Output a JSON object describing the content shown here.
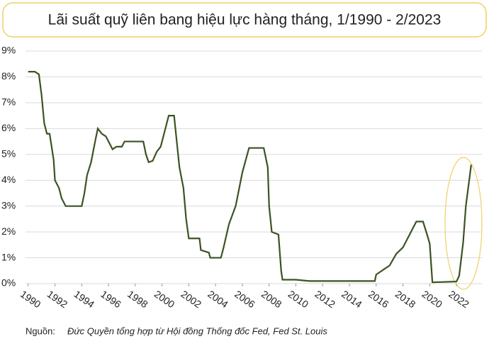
{
  "chart_data": {
    "type": "line",
    "title": "Lãi suất quỹ liên bang hiệu lực hàng tháng, 1/1990 - 2/2023",
    "source_label": "Nguồn:",
    "source_text": "Đức Quyền tổng hợp từ Hội đồng Thống đốc Fed, Fed St. Louis",
    "x": [
      1990.0,
      1990.5,
      1990.8,
      1991.0,
      1991.2,
      1991.4,
      1991.6,
      1991.9,
      1992.0,
      1992.3,
      1992.5,
      1992.8,
      1993.0,
      1993.5,
      1994.0,
      1994.2,
      1994.4,
      1994.7,
      1995.0,
      1995.2,
      1995.5,
      1995.8,
      1996.0,
      1996.3,
      1996.6,
      1997.0,
      1997.2,
      1997.5,
      1998.0,
      1998.6,
      1998.8,
      1999.0,
      1999.3,
      1999.6,
      1999.9,
      2000.2,
      2000.5,
      2000.9,
      2001.0,
      2001.3,
      2001.6,
      2001.8,
      2002.0,
      2002.8,
      2002.9,
      2003.5,
      2003.6,
      2004.4,
      2004.6,
      2005.0,
      2005.5,
      2006.0,
      2006.5,
      2007.6,
      2007.9,
      2008.0,
      2008.2,
      2008.7,
      2008.9,
      2009.0,
      2010.0,
      2011.0,
      2012.0,
      2013.0,
      2015.9,
      2016.0,
      2017.0,
      2017.5,
      2018.0,
      2018.5,
      2019.0,
      2019.5,
      2019.8,
      2020.0,
      2020.2,
      2022.0,
      2022.2,
      2022.5,
      2022.7,
      2022.9,
      2023.1
    ],
    "series": [
      {
        "name": "Lãi suất quỹ liên bang",
        "color": "#3b5323",
        "values": [
          8.2,
          8.2,
          8.1,
          7.3,
          6.2,
          5.8,
          5.8,
          4.8,
          4.0,
          3.7,
          3.3,
          3.0,
          3.0,
          3.0,
          3.0,
          3.5,
          4.2,
          4.7,
          5.5,
          6.0,
          5.8,
          5.7,
          5.5,
          5.2,
          5.3,
          5.3,
          5.5,
          5.5,
          5.5,
          5.5,
          5.0,
          4.7,
          4.75,
          5.1,
          5.3,
          5.9,
          6.5,
          6.5,
          6.0,
          4.5,
          3.7,
          2.5,
          1.75,
          1.75,
          1.3,
          1.2,
          1.0,
          1.0,
          1.4,
          2.3,
          3.0,
          4.3,
          5.25,
          5.25,
          4.5,
          3.0,
          2.0,
          1.9,
          0.5,
          0.15,
          0.15,
          0.1,
          0.1,
          0.1,
          0.1,
          0.35,
          0.7,
          1.15,
          1.4,
          1.9,
          2.4,
          2.4,
          1.9,
          1.55,
          0.05,
          0.08,
          0.3,
          1.6,
          3.0,
          3.8,
          4.6
        ]
      }
    ],
    "xlim": [
      1989.8,
      2023.9
    ],
    "xticks": [
      1990,
      1992,
      1994,
      1996,
      1998,
      2000,
      2002,
      2004,
      2006,
      2008,
      2010,
      2012,
      2014,
      2016,
      2018,
      2020,
      2022
    ],
    "ylim": [
      0,
      9
    ],
    "yticks": [
      {
        "value": 0,
        "label": "0%"
      },
      {
        "value": 1,
        "label": "1%"
      },
      {
        "value": 2,
        "label": "2%"
      },
      {
        "value": 3,
        "label": "3%"
      },
      {
        "value": 4,
        "label": "4%"
      },
      {
        "value": 5,
        "label": "5%"
      },
      {
        "value": 6,
        "label": "6%"
      },
      {
        "value": 7,
        "label": "7%"
      },
      {
        "value": 8,
        "label": "8%"
      },
      {
        "value": 9,
        "label": "9%"
      }
    ],
    "grid": true
  }
}
